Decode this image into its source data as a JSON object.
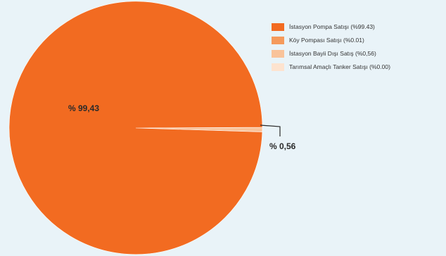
{
  "chart_data": {
    "type": "pie",
    "title": "",
    "series": [
      {
        "name": "İstasyon Pompa Satışı (%99.43)",
        "value": 99.43,
        "color": "#f26b21"
      },
      {
        "name": "Köy Pompası Satışı (%0.01)",
        "value": 0.01,
        "color": "#f59a5c"
      },
      {
        "name": "İstasyon Bayii Dışı Satış (%0,56)",
        "value": 0.56,
        "color": "#f9c39a"
      },
      {
        "name": "Tarımsal Amaçlı Tanker Satışı (%0.00)",
        "value": 0.0,
        "color": "#fde3cf"
      }
    ],
    "labels": {
      "main": "% 99,43",
      "small": "% 0,56"
    },
    "legend_position": "top-right"
  }
}
